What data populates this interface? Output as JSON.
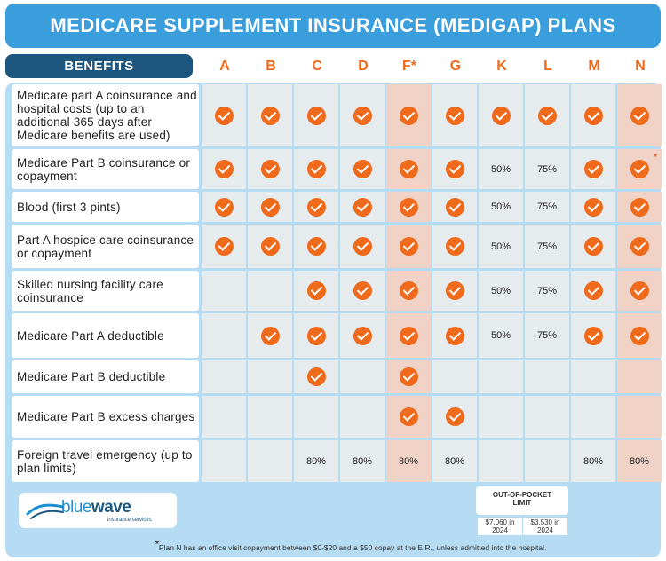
{
  "title": "MEDICARE SUPPLEMENT INSURANCE (MEDIGAP) PLANS",
  "benefits_header": "BENEFITS",
  "plans": [
    "A",
    "B",
    "C",
    "D",
    "F*",
    "G",
    "K",
    "L",
    "M",
    "N"
  ],
  "highlight_plans": [
    "F*",
    "N"
  ],
  "rows": [
    {
      "label": "Medicare part A coinsurance and hospital costs (up to an additional 365 days after Medicare benefits are used)",
      "cells": [
        "check",
        "check",
        "check",
        "check",
        "check",
        "check",
        "check",
        "check",
        "check",
        "check"
      ]
    },
    {
      "label": "Medicare Part B coinsurance or copayment",
      "cells": [
        "check",
        "check",
        "check",
        "check",
        "check",
        "check",
        "50%",
        "75%",
        "check",
        "check*"
      ]
    },
    {
      "label": "Blood (first 3 pints)",
      "cells": [
        "check",
        "check",
        "check",
        "check",
        "check",
        "check",
        "50%",
        "75%",
        "check",
        "check"
      ]
    },
    {
      "label": "Part A hospice care coinsurance or copayment",
      "cells": [
        "check",
        "check",
        "check",
        "check",
        "check",
        "check",
        "50%",
        "75%",
        "check",
        "check"
      ]
    },
    {
      "label": "Skilled nursing facility care coinsurance",
      "cells": [
        "",
        "",
        "check",
        "check",
        "check",
        "check",
        "50%",
        "75%",
        "check",
        "check"
      ]
    },
    {
      "label": "Medicare Part A deductible",
      "cells": [
        "",
        "check",
        "check",
        "check",
        "check",
        "check",
        "50%",
        "75%",
        "check",
        "check"
      ]
    },
    {
      "label": "Medicare Part B deductible",
      "cells": [
        "",
        "",
        "check",
        "",
        "check",
        "",
        "",
        "",
        "",
        ""
      ]
    },
    {
      "label": "Medicare Part B excess charges",
      "cells": [
        "",
        "",
        "",
        "",
        "check",
        "check",
        "",
        "",
        "",
        ""
      ]
    },
    {
      "label": "Foreign travel emergency (up to plan limits)",
      "cells": [
        "",
        "",
        "80%",
        "80%",
        "80%",
        "80%",
        "",
        "",
        "80%",
        "80%"
      ]
    }
  ],
  "logo": {
    "word_light": "blue",
    "word_bold": "wave",
    "tagline": "insurance services"
  },
  "out_of_pocket": {
    "label": "OUT-OF-POCKET LIMIT",
    "values": [
      "$7,060 in 2024",
      "$3,530 in 2024"
    ]
  },
  "footnote": {
    "mark": "*",
    "text": "Plan N has an office visit copayment between $0-$20 and a $50 copay at the E.R., unless admitted into the hospital."
  },
  "colors": {
    "title_bg": "#3a9ddc",
    "header_bg": "#1c567f",
    "accent": "#ef6a1b",
    "panel_bg": "#b6dcf3",
    "cell_bg": "#e6ebee",
    "highlight_bg": "#f0d2c6"
  }
}
